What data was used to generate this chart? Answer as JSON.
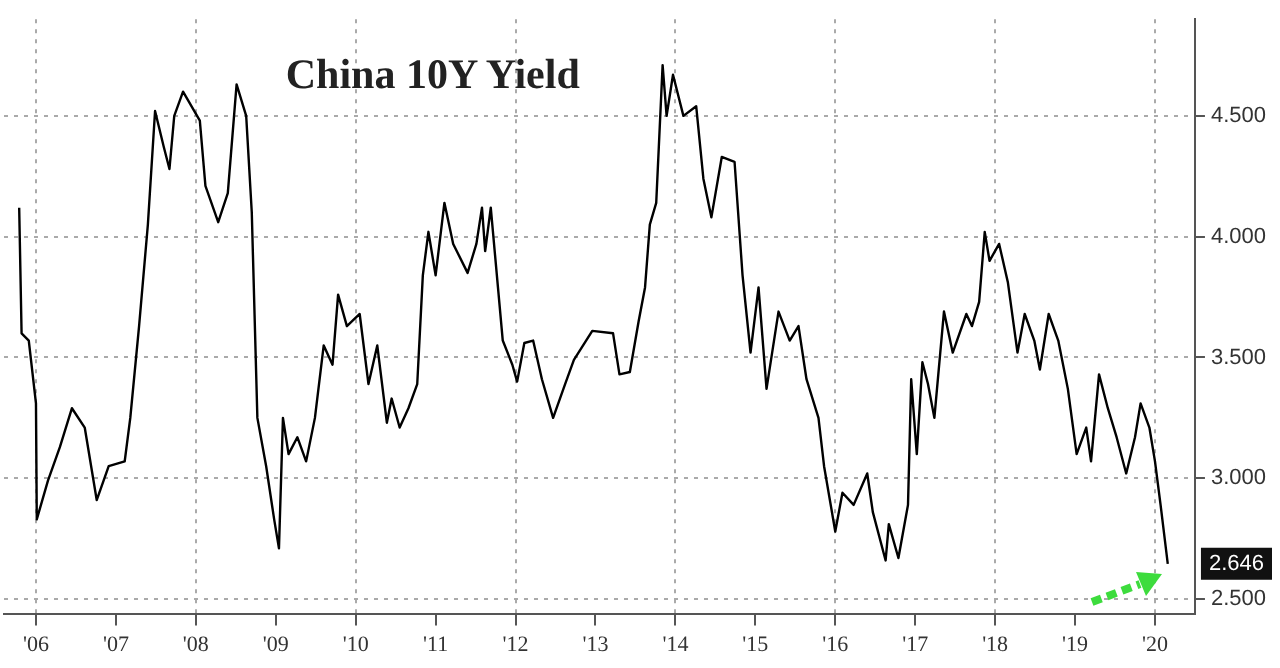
{
  "chart_data": {
    "type": "line",
    "title": "China 10Y Yield",
    "color": "#000000",
    "x": [
      2005.79,
      2005.82,
      2005.91,
      2006.0,
      2006.01,
      2006.15,
      2006.3,
      2006.45,
      2006.61,
      2006.76,
      2006.91,
      2007.11,
      2007.18,
      2007.29,
      2007.4,
      2007.49,
      2007.6,
      2007.67,
      2007.73,
      2007.84,
      2008.05,
      2008.12,
      2008.28,
      2008.4,
      2008.51,
      2008.63,
      2008.7,
      2008.77,
      2008.88,
      2008.98,
      2009.04,
      2009.09,
      2009.16,
      2009.27,
      2009.38,
      2009.49,
      2009.6,
      2009.71,
      2009.78,
      2009.89,
      2010.05,
      2010.16,
      2010.27,
      2010.39,
      2010.45,
      2010.55,
      2010.66,
      2010.77,
      2010.84,
      2010.91,
      2011.0,
      2011.11,
      2011.22,
      2011.4,
      2011.51,
      2011.58,
      2011.62,
      2011.69,
      2011.78,
      2011.84,
      2011.96,
      2012.02,
      2012.11,
      2012.22,
      2012.33,
      2012.47,
      2012.62,
      2012.73,
      2012.96,
      2013.22,
      2013.3,
      2013.43,
      2013.54,
      2013.62,
      2013.68,
      2013.76,
      2013.84,
      2013.89,
      2013.97,
      2014.1,
      2014.26,
      2014.35,
      2014.45,
      2014.58,
      2014.74,
      2014.84,
      2014.94,
      2015.04,
      2015.14,
      2015.29,
      2015.43,
      2015.54,
      2015.64,
      2015.79,
      2015.86,
      2016.0,
      2016.09,
      2016.23,
      2016.4,
      2016.47,
      2016.63,
      2016.67,
      2016.79,
      2016.91,
      2016.95,
      2017.02,
      2017.09,
      2017.16,
      2017.24,
      2017.36,
      2017.47,
      2017.64,
      2017.71,
      2017.8,
      2017.87,
      2017.93,
      2018.05,
      2018.16,
      2018.28,
      2018.37,
      2018.49,
      2018.56,
      2018.67,
      2018.79,
      2018.91,
      2019.02,
      2019.14,
      2019.2,
      2019.3,
      2019.41,
      2019.52,
      2019.64,
      2019.75,
      2019.82,
      2019.93,
      2020.0,
      2020.07,
      2020.16
    ],
    "values": [
      4.12,
      3.6,
      3.57,
      3.31,
      2.83,
      2.99,
      3.13,
      3.29,
      3.21,
      2.91,
      3.05,
      3.07,
      3.25,
      3.63,
      4.05,
      4.52,
      4.37,
      4.28,
      4.5,
      4.6,
      4.48,
      4.21,
      4.06,
      4.18,
      4.63,
      4.5,
      4.1,
      3.25,
      3.05,
      2.83,
      2.71,
      3.25,
      3.1,
      3.17,
      3.07,
      3.25,
      3.55,
      3.47,
      3.76,
      3.63,
      3.68,
      3.39,
      3.55,
      3.23,
      3.33,
      3.21,
      3.29,
      3.39,
      3.84,
      4.02,
      3.84,
      4.14,
      3.97,
      3.85,
      3.97,
      4.12,
      3.94,
      4.12,
      3.79,
      3.57,
      3.47,
      3.4,
      3.56,
      3.57,
      3.41,
      3.25,
      3.39,
      3.49,
      3.61,
      3.6,
      3.43,
      3.44,
      3.65,
      3.79,
      4.05,
      4.14,
      4.71,
      4.5,
      4.67,
      4.5,
      4.54,
      4.24,
      4.08,
      4.33,
      4.31,
      3.84,
      3.52,
      3.79,
      3.37,
      3.69,
      3.57,
      3.63,
      3.41,
      3.25,
      3.05,
      2.78,
      2.94,
      2.89,
      3.02,
      2.86,
      2.66,
      2.81,
      2.67,
      2.89,
      3.41,
      3.1,
      3.48,
      3.39,
      3.25,
      3.69,
      3.52,
      3.68,
      3.63,
      3.73,
      4.02,
      3.9,
      3.97,
      3.81,
      3.52,
      3.68,
      3.57,
      3.45,
      3.68,
      3.57,
      3.37,
      3.1,
      3.21,
      3.07,
      3.43,
      3.29,
      3.17,
      3.02,
      3.17,
      3.31,
      3.21,
      3.07,
      2.89,
      2.646
    ],
    "xlim": [
      2005.6,
      2020.5
    ],
    "xticks": [
      {
        "value": 2006,
        "label": "'06"
      },
      {
        "value": 2007,
        "label": "'07"
      },
      {
        "value": 2008,
        "label": "'08"
      },
      {
        "value": 2009,
        "label": "'09"
      },
      {
        "value": 2010,
        "label": "'10"
      },
      {
        "value": 2011,
        "label": "'11"
      },
      {
        "value": 2012,
        "label": "'12"
      },
      {
        "value": 2013,
        "label": "'13"
      },
      {
        "value": 2014,
        "label": "'14"
      },
      {
        "value": 2015,
        "label": "'15"
      },
      {
        "value": 2016,
        "label": "'16"
      },
      {
        "value": 2017,
        "label": "'17"
      },
      {
        "value": 2018,
        "label": "'18"
      },
      {
        "value": 2019,
        "label": "'19"
      },
      {
        "value": 2020,
        "label": "'20"
      }
    ],
    "ylim": [
      2.44,
      4.9
    ],
    "yticks": [
      {
        "value": 2.5,
        "label": "2.500"
      },
      {
        "value": 3,
        "label": "3.000"
      },
      {
        "value": 3.5,
        "label": "3.500"
      },
      {
        "value": 4,
        "label": "4.000"
      },
      {
        "value": 4.5,
        "label": "4.500"
      }
    ],
    "grid": true,
    "annotations": [
      {
        "text": "2.646",
        "x": 2020.16,
        "y": 2.646
      }
    ]
  }
}
